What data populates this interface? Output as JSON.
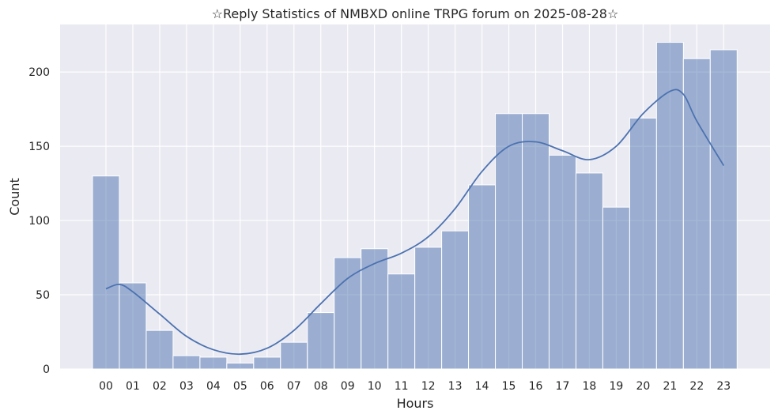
{
  "chart_data": {
    "type": "bar",
    "title": "☆Reply Statistics of NMBXD online TRPG forum on 2025-08-28☆",
    "xlabel": "Hours",
    "ylabel": "Count",
    "ylim": [
      0,
      232
    ],
    "yticks": [
      "0",
      "50",
      "100",
      "150",
      "200"
    ],
    "categories": [
      "00",
      "01",
      "02",
      "03",
      "04",
      "05",
      "06",
      "07",
      "08",
      "09",
      "10",
      "11",
      "12",
      "13",
      "14",
      "15",
      "16",
      "17",
      "18",
      "19",
      "20",
      "21",
      "22",
      "23"
    ],
    "values": [
      130,
      58,
      26,
      9,
      8,
      4,
      8,
      18,
      38,
      75,
      81,
      64,
      82,
      93,
      124,
      172,
      172,
      144,
      132,
      109,
      169,
      220,
      209,
      215
    ],
    "kde": [
      [
        0,
        54
      ],
      [
        0.5,
        57
      ],
      [
        1,
        52
      ],
      [
        2,
        37
      ],
      [
        3,
        22
      ],
      [
        4,
        13
      ],
      [
        5,
        10
      ],
      [
        6,
        14
      ],
      [
        7,
        26
      ],
      [
        8,
        44
      ],
      [
        9,
        61
      ],
      [
        10,
        71
      ],
      [
        11,
        78
      ],
      [
        12,
        89
      ],
      [
        13,
        108
      ],
      [
        14,
        133
      ],
      [
        15,
        150
      ],
      [
        16,
        153
      ],
      [
        17,
        147
      ],
      [
        18,
        141
      ],
      [
        19,
        150
      ],
      [
        20,
        172
      ],
      [
        21,
        187
      ],
      [
        21.5,
        185
      ],
      [
        22,
        167
      ],
      [
        23,
        137
      ]
    ],
    "bar_color": "#4C72B0",
    "bar_alpha": 0.5,
    "line_color": "#4C72B0",
    "background_color": "#EAEAF2",
    "grid": true,
    "legend": "none"
  }
}
